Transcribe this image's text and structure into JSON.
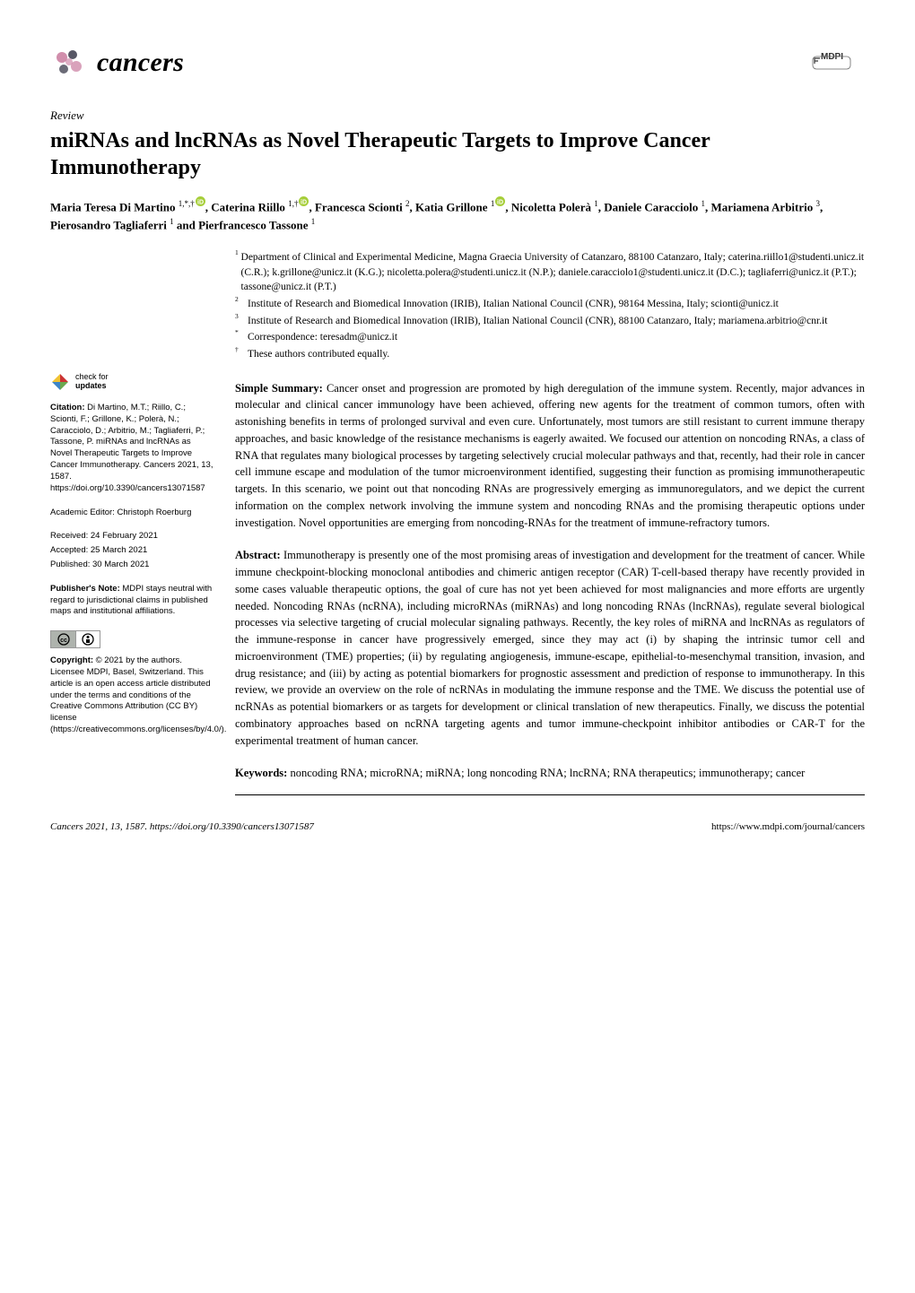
{
  "colors": {
    "text": "#000000",
    "background": "#ffffff",
    "orcid_green": "#a6ce39",
    "cc_gray": "#aeb3ad",
    "check_green": "#6aa84f",
    "check_red": "#cc3333",
    "check_blue": "#3d85c6",
    "check_yellow": "#f1c232",
    "logo_pink": "#c97a9e",
    "logo_dark": "#3a3a4a"
  },
  "journal": {
    "name": "cancers"
  },
  "publisher": {
    "name": "MDPI"
  },
  "article": {
    "type": "Review",
    "title": "miRNAs and lncRNAs as Novel Therapeutic Targets to Improve Cancer Immunotherapy"
  },
  "authors_line": "Maria Teresa Di Martino ¹,*,†, Caterina Riillo ¹,†, Francesca Scionti ², Katia Grillone ¹, Nicoletta Polerà ¹, Daniele Caracciolo ¹, Mariamena Arbitrio ³, Pierosandro Tagliaferri ¹ and Pierfrancesco Tassone ¹",
  "authors": [
    {
      "name": "Maria Teresa Di Martino",
      "sup": "1,*,†",
      "orcid": true
    },
    {
      "name": "Caterina Riillo",
      "sup": "1,†",
      "orcid": true
    },
    {
      "name": "Francesca Scionti",
      "sup": "2",
      "orcid": false
    },
    {
      "name": "Katia Grillone",
      "sup": "1",
      "orcid": true
    },
    {
      "name": "Nicoletta Polerà",
      "sup": "1",
      "orcid": false
    },
    {
      "name": "Daniele Caracciolo",
      "sup": "1",
      "orcid": false
    },
    {
      "name": "Mariamena Arbitrio",
      "sup": "3",
      "orcid": false
    },
    {
      "name": "Pierosandro Tagliaferri",
      "sup": "1",
      "orcid": false
    },
    {
      "name": "Pierfrancesco Tassone",
      "sup": "1",
      "orcid": false
    }
  ],
  "affiliations": [
    {
      "num": "1",
      "text": "Department of Clinical and Experimental Medicine, Magna Graecia University of Catanzaro, 88100 Catanzaro, Italy; caterina.riillo1@studenti.unicz.it (C.R.); k.grillone@unicz.it (K.G.); nicoletta.polera@studenti.unicz.it (N.P.); daniele.caracciolo1@studenti.unicz.it (D.C.); tagliaferri@unicz.it (P.T.); tassone@unicz.it (P.T.)"
    },
    {
      "num": "2",
      "text": "Institute of Research and Biomedical Innovation (IRIB), Italian National Council (CNR), 98164 Messina, Italy; scionti@unicz.it"
    },
    {
      "num": "3",
      "text": "Institute of Research and Biomedical Innovation (IRIB), Italian National Council (CNR), 88100 Catanzaro, Italy; mariamena.arbitrio@cnr.it"
    },
    {
      "num": "*",
      "text": "Correspondence: teresadm@unicz.it"
    },
    {
      "num": "†",
      "text": "These authors contributed equally."
    }
  ],
  "simple_summary": {
    "label": "Simple Summary:",
    "text": "Cancer onset and progression are promoted by high deregulation of the immune system. Recently, major advances in molecular and clinical cancer immunology have been achieved, offering new agents for the treatment of common tumors, often with astonishing benefits in terms of prolonged survival and even cure. Unfortunately, most tumors are still resistant to current immune therapy approaches, and basic knowledge of the resistance mechanisms is eagerly awaited. We focused our attention on noncoding RNAs, a class of RNA that regulates many biological processes by targeting selectively crucial molecular pathways and that, recently, had their role in cancer cell immune escape and modulation of the tumor microenvironment identified, suggesting their function as promising immunotherapeutic targets. In this scenario, we point out that noncoding RNAs are progressively emerging as immunoregulators, and we depict the current information on the complex network involving the immune system and noncoding RNAs and the promising therapeutic options under investigation. Novel opportunities are emerging from noncoding-RNAs for the treatment of immune-refractory tumors."
  },
  "abstract": {
    "label": "Abstract:",
    "text": "Immunotherapy is presently one of the most promising areas of investigation and development for the treatment of cancer. While immune checkpoint-blocking monoclonal antibodies and chimeric antigen receptor (CAR) T-cell-based therapy have recently provided in some cases valuable therapeutic options, the goal of cure has not yet been achieved for most malignancies and more efforts are urgently needed. Noncoding RNAs (ncRNA), including microRNAs (miRNAs) and long noncoding RNAs (lncRNAs), regulate several biological processes via selective targeting of crucial molecular signaling pathways. Recently, the key roles of miRNA and lncRNAs as regulators of the immune-response in cancer have progressively emerged, since they may act (i) by shaping the intrinsic tumor cell and microenvironment (TME) properties; (ii) by regulating angiogenesis, immune-escape, epithelial-to-mesenchymal transition, invasion, and drug resistance; and (iii) by acting as potential biomarkers for prognostic assessment and prediction of response to immunotherapy. In this review, we provide an overview on the role of ncRNAs in modulating the immune response and the TME. We discuss the potential use of ncRNAs as potential biomarkers or as targets for development or clinical translation of new therapeutics. Finally, we discuss the potential combinatory approaches based on ncRNA targeting agents and tumor immune-checkpoint inhibitor antibodies or CAR-T for the experimental treatment of human cancer."
  },
  "keywords": {
    "label": "Keywords:",
    "text": "noncoding RNA; microRNA; miRNA; long noncoding RNA; lncRNA; RNA therapeutics; immunotherapy; cancer"
  },
  "sidebar": {
    "check_updates": "check for\nupdates",
    "citation_label": "Citation:",
    "citation_text": "Di Martino, M.T.; Riillo, C.; Scionti, F.; Grillone, K.; Polerà, N.; Caracciolo, D.; Arbitrio, M.; Tagliaferri, P.; Tassone, P. miRNAs and lncRNAs as Novel Therapeutic Targets to Improve Cancer Immunotherapy. Cancers 2021, 13, 1587. https://doi.org/10.3390/cancers13071587",
    "editor_label": "Academic Editor:",
    "editor_name": "Christoph Roerburg",
    "received_label": "Received:",
    "received_date": "24 February 2021",
    "accepted_label": "Accepted:",
    "accepted_date": "25 March 2021",
    "published_label": "Published:",
    "published_date": "30 March 2021",
    "publishers_note_label": "Publisher's Note:",
    "publishers_note_text": "MDPI stays neutral with regard to jurisdictional claims in published maps and institutional affiliations.",
    "copyright_label": "Copyright:",
    "copyright_text": "© 2021 by the authors. Licensee MDPI, Basel, Switzerland. This article is an open access article distributed under the terms and conditions of the Creative Commons Attribution (CC BY) license (https://creativecommons.org/licenses/by/4.0/)."
  },
  "footer": {
    "left": "Cancers 2021, 13, 1587. https://doi.org/10.3390/cancers13071587",
    "right": "https://www.mdpi.com/journal/cancers"
  }
}
